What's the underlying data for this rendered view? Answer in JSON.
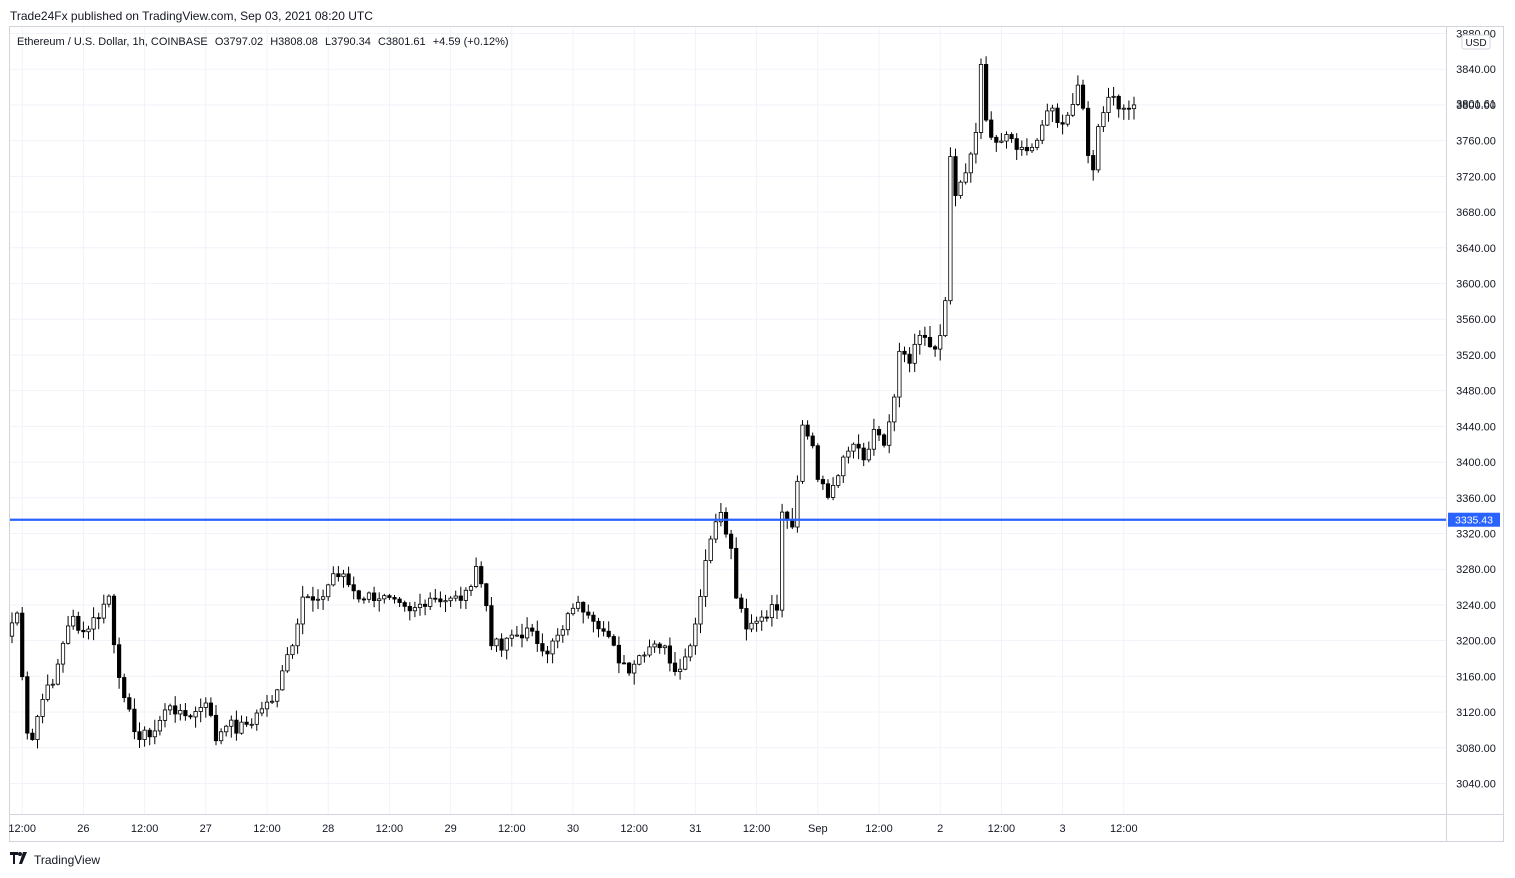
{
  "header": {
    "publisher": "Trade24Fx published on TradingView.com, Sep 03, 2021 08:20 UTC"
  },
  "legend": {
    "symbol": "Ethereum / U.S. Dollar, 1h, COINBASE",
    "open": "O3797.02",
    "high": "H3808.08",
    "low": "L3790.34",
    "close": "C3801.61",
    "change": "+4.59 (+0.12%)"
  },
  "footer": {
    "brand": "TradingView",
    "logo_icon": "tradingview-logo-icon"
  },
  "colors": {
    "hline": "#2962ff",
    "grid": "#f0f3fa",
    "candle_up_fill": "#ffffff",
    "candle_down_fill": "#000000",
    "candle_border": "#000000"
  },
  "chart_data": {
    "type": "candlestick",
    "symbol": "ETHUSD",
    "timeframe": "1h",
    "currency": "USD",
    "ylim": [
      3000,
      3880
    ],
    "y_ticks": [
      "3040.00",
      "3080.00",
      "3120.00",
      "3160.00",
      "3200.00",
      "3240.00",
      "3280.00",
      "3320.00",
      "3360.00",
      "3400.00",
      "3440.00",
      "3480.00",
      "3520.00",
      "3560.00",
      "3600.00",
      "3640.00",
      "3680.00",
      "3720.00",
      "3760.00",
      "3800.00",
      "3840.00",
      "3880.00"
    ],
    "x_ticks": [
      {
        "label": "12:00",
        "bar": 2
      },
      {
        "label": "26",
        "bar": 14
      },
      {
        "label": "12:00",
        "bar": 26
      },
      {
        "label": "27",
        "bar": 38
      },
      {
        "label": "12:00",
        "bar": 50
      },
      {
        "label": "28",
        "bar": 62
      },
      {
        "label": "12:00",
        "bar": 74
      },
      {
        "label": "29",
        "bar": 86
      },
      {
        "label": "12:00",
        "bar": 98
      },
      {
        "label": "30",
        "bar": 110
      },
      {
        "label": "12:00",
        "bar": 122
      },
      {
        "label": "31",
        "bar": 134
      },
      {
        "label": "12:00",
        "bar": 146
      },
      {
        "label": "Sep",
        "bar": 158
      },
      {
        "label": "12:00",
        "bar": 170
      },
      {
        "label": "2",
        "bar": 182
      },
      {
        "label": "12:00",
        "bar": 194
      },
      {
        "label": "3",
        "bar": 206
      },
      {
        "label": "12:00",
        "bar": 218
      }
    ],
    "hline": {
      "value": 3335.43,
      "label": "3335.43"
    },
    "last_price": {
      "value": 3801.61,
      "label": "3801.61"
    },
    "bars_count": 222,
    "anchors": [
      [
        0,
        3220
      ],
      [
        1,
        3230
      ],
      [
        3,
        3100
      ],
      [
        4,
        3090
      ],
      [
        6,
        3140
      ],
      [
        8,
        3150
      ],
      [
        10,
        3200
      ],
      [
        12,
        3225
      ],
      [
        14,
        3210
      ],
      [
        17,
        3230
      ],
      [
        19,
        3250
      ],
      [
        20,
        3200
      ],
      [
        22,
        3130
      ],
      [
        25,
        3090
      ],
      [
        28,
        3100
      ],
      [
        31,
        3130
      ],
      [
        33,
        3115
      ],
      [
        36,
        3120
      ],
      [
        38,
        3135
      ],
      [
        40,
        3090
      ],
      [
        42,
        3110
      ],
      [
        44,
        3100
      ],
      [
        47,
        3110
      ],
      [
        49,
        3125
      ],
      [
        51,
        3130
      ],
      [
        53,
        3170
      ],
      [
        55,
        3200
      ],
      [
        57,
        3250
      ],
      [
        60,
        3240
      ],
      [
        63,
        3275
      ],
      [
        65,
        3270
      ],
      [
        68,
        3250
      ],
      [
        72,
        3250
      ],
      [
        75,
        3240
      ],
      [
        78,
        3230
      ],
      [
        82,
        3250
      ],
      [
        86,
        3245
      ],
      [
        89,
        3250
      ],
      [
        91,
        3285
      ],
      [
        93,
        3240
      ],
      [
        94,
        3200
      ],
      [
        96,
        3190
      ],
      [
        98,
        3205
      ],
      [
        101,
        3210
      ],
      [
        103,
        3200
      ],
      [
        105,
        3190
      ],
      [
        108,
        3210
      ],
      [
        110,
        3240
      ],
      [
        113,
        3235
      ],
      [
        115,
        3220
      ],
      [
        117,
        3200
      ],
      [
        119,
        3180
      ],
      [
        121,
        3170
      ],
      [
        124,
        3190
      ],
      [
        126,
        3200
      ],
      [
        128,
        3190
      ],
      [
        130,
        3170
      ],
      [
        132,
        3180
      ],
      [
        134,
        3220
      ],
      [
        136,
        3290
      ],
      [
        138,
        3340
      ],
      [
        139,
        3340
      ],
      [
        141,
        3300
      ],
      [
        142,
        3250
      ],
      [
        144,
        3210
      ],
      [
        146,
        3225
      ],
      [
        149,
        3235
      ],
      [
        150,
        3240
      ],
      [
        151,
        3350
      ],
      [
        153,
        3330
      ],
      [
        155,
        3440
      ],
      [
        157,
        3420
      ],
      [
        158,
        3380
      ],
      [
        160,
        3360
      ],
      [
        162,
        3390
      ],
      [
        165,
        3420
      ],
      [
        167,
        3400
      ],
      [
        169,
        3430
      ],
      [
        171,
        3420
      ],
      [
        173,
        3470
      ],
      [
        174,
        3520
      ],
      [
        176,
        3510
      ],
      [
        178,
        3540
      ],
      [
        180,
        3530
      ],
      [
        182,
        3535
      ],
      [
        183,
        3580
      ],
      [
        184,
        3740
      ],
      [
        185,
        3700
      ],
      [
        187,
        3720
      ],
      [
        189,
        3770
      ],
      [
        190,
        3840
      ],
      [
        191,
        3780
      ],
      [
        193,
        3760
      ],
      [
        196,
        3760
      ],
      [
        198,
        3750
      ],
      [
        201,
        3760
      ],
      [
        203,
        3800
      ],
      [
        205,
        3780
      ],
      [
        207,
        3790
      ],
      [
        209,
        3820
      ],
      [
        210,
        3800
      ],
      [
        211,
        3740
      ],
      [
        212,
        3730
      ],
      [
        213,
        3770
      ],
      [
        215,
        3810
      ],
      [
        217,
        3800
      ],
      [
        219,
        3797
      ],
      [
        220,
        3800
      ]
    ]
  }
}
